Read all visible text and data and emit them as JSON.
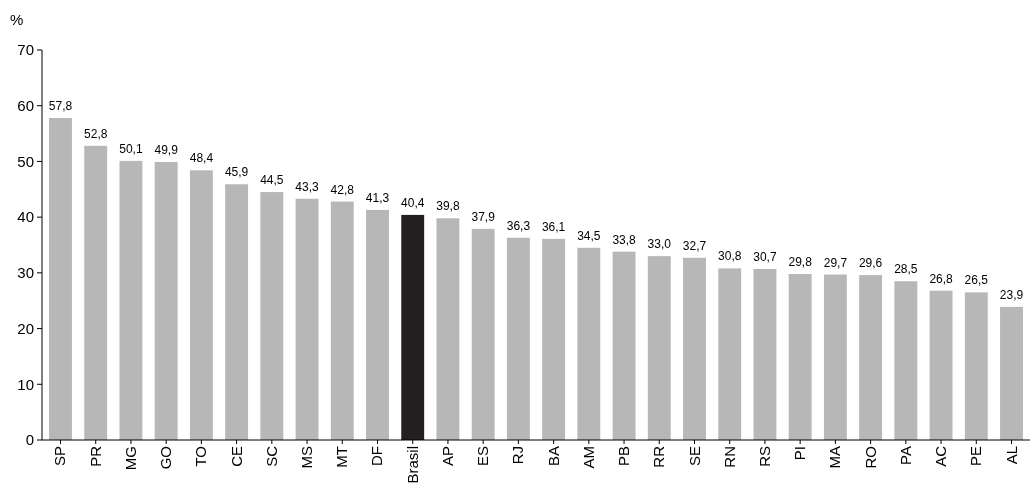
{
  "chart_data": {
    "type": "bar",
    "ylabel": "%",
    "categories": [
      "SP",
      "PR",
      "MG",
      "GO",
      "TO",
      "CE",
      "SC",
      "MS",
      "MT",
      "DF",
      "Brasil",
      "AP",
      "ES",
      "RJ",
      "BA",
      "AM",
      "PB",
      "RR",
      "SE",
      "RN",
      "RS",
      "PI",
      "MA",
      "RO",
      "PA",
      "AC",
      "PE",
      "AL"
    ],
    "values": [
      57.8,
      52.8,
      50.1,
      49.9,
      48.4,
      45.9,
      44.5,
      43.3,
      42.8,
      41.3,
      40.4,
      39.8,
      37.9,
      36.3,
      36.1,
      34.5,
      33.8,
      33.0,
      32.7,
      30.8,
      30.7,
      29.8,
      29.7,
      29.6,
      28.5,
      26.8,
      26.5,
      23.9
    ],
    "value_labels": [
      "57,8",
      "52,8",
      "50,1",
      "49,9",
      "48,4",
      "45,9",
      "44,5",
      "43,3",
      "42,8",
      "41,3",
      "40,4",
      "39,8",
      "37,9",
      "36,3",
      "36,1",
      "34,5",
      "33,8",
      "33,0",
      "32,7",
      "30,8",
      "30,7",
      "29,8",
      "29,7",
      "29,6",
      "28,5",
      "26,8",
      "26,5",
      "23,9"
    ],
    "colors": [
      "#b7b7b7",
      "#b7b7b7",
      "#b7b7b7",
      "#b7b7b7",
      "#b7b7b7",
      "#b7b7b7",
      "#b7b7b7",
      "#b7b7b7",
      "#b7b7b7",
      "#b7b7b7",
      "#231f20",
      "#b7b7b7",
      "#b7b7b7",
      "#b7b7b7",
      "#b7b7b7",
      "#b7b7b7",
      "#b7b7b7",
      "#b7b7b7",
      "#b7b7b7",
      "#b7b7b7",
      "#b7b7b7",
      "#b7b7b7",
      "#b7b7b7",
      "#b7b7b7",
      "#b7b7b7",
      "#b7b7b7",
      "#b7b7b7",
      "#b7b7b7"
    ],
    "ylim": [
      0,
      70
    ],
    "yticks": [
      0,
      10,
      20,
      30,
      40,
      50,
      60,
      70
    ],
    "grid": false
  }
}
